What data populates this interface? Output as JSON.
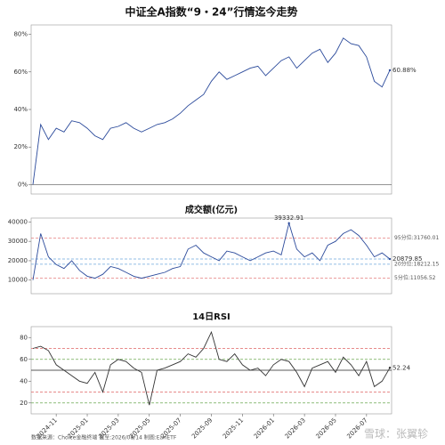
{
  "chart_data": [
    {
      "type": "line",
      "title": "中证全A指数“9・24”行情迄今走势",
      "color": "#2b4a9b",
      "values": [
        0,
        32,
        24,
        30,
        28,
        34,
        33,
        30,
        26,
        24,
        30,
        31,
        33,
        30,
        28,
        30,
        32,
        33,
        35,
        38,
        42,
        45,
        48,
        55,
        60,
        56,
        58,
        60,
        62,
        63,
        58,
        62,
        66,
        68,
        62,
        66,
        70,
        72,
        65,
        70,
        78,
        75,
        74,
        68,
        55,
        52,
        60.88
      ],
      "value_labels": [
        null,
        null,
        null,
        null,
        null,
        null,
        null,
        null,
        null,
        null,
        null,
        null,
        null,
        null,
        null,
        null,
        null,
        null,
        null,
        null,
        null,
        null,
        null,
        null,
        null,
        null,
        null,
        null,
        null,
        null,
        null,
        null,
        null,
        null,
        null,
        null,
        null,
        null,
        null,
        null,
        null,
        null,
        null,
        null,
        null,
        null,
        "60.88%"
      ],
      "ylim": [
        -5,
        85
      ],
      "yticks": [
        {
          "value": 0,
          "label": "0%"
        },
        {
          "value": 20,
          "label": "20%"
        },
        {
          "value": 40,
          "label": "40%"
        },
        {
          "value": 60,
          "label": "60%"
        },
        {
          "value": 80,
          "label": "80%"
        }
      ],
      "reference_lines": [
        {
          "value": 0,
          "color": "#555555"
        }
      ]
    },
    {
      "type": "line",
      "title": "成交额(亿元)",
      "color": "#2b4a9b",
      "values": [
        10000,
        34000,
        22000,
        18000,
        16000,
        20000,
        15000,
        12000,
        11000,
        13000,
        17000,
        16000,
        14000,
        12000,
        11000,
        12000,
        13000,
        14000,
        16000,
        17000,
        26000,
        28000,
        24000,
        22000,
        20000,
        25000,
        24000,
        22000,
        20000,
        22000,
        24000,
        25000,
        23000,
        39332.91,
        26000,
        22000,
        24000,
        20000,
        28000,
        30000,
        34000,
        36000,
        33000,
        28000,
        22000,
        24000,
        20879.85
      ],
      "value_labels": [
        null,
        null,
        null,
        null,
        null,
        null,
        null,
        null,
        null,
        null,
        null,
        null,
        null,
        null,
        null,
        null,
        null,
        null,
        null,
        null,
        null,
        null,
        null,
        null,
        null,
        null,
        null,
        null,
        null,
        null,
        null,
        null,
        null,
        "39332.91",
        null,
        null,
        null,
        null,
        null,
        null,
        null,
        null,
        null,
        null,
        null,
        null,
        "20879.85"
      ],
      "ylim": [
        3000,
        42000
      ],
      "yticks": [
        10000,
        20000,
        30000,
        40000
      ],
      "reference_lines": [
        {
          "value": 31760.01,
          "label": "95分位:31760.01",
          "color": "#e06666"
        },
        {
          "value": 20879.85,
          "color": "#6fa8dc"
        },
        {
          "value": 18212.15,
          "label": "20分位:18212.15",
          "color": "#6fa8dc"
        },
        {
          "value": 11056.52,
          "label": "5分位:11056.52",
          "color": "#e06666"
        }
      ]
    },
    {
      "type": "line",
      "title": "14日RSI",
      "color": "#333333",
      "categories": [
        null,
        null,
        null,
        "2024-11",
        null,
        null,
        null,
        "2025-01",
        null,
        null,
        null,
        "2025-03",
        null,
        null,
        null,
        "2025-05",
        null,
        null,
        null,
        "2025-07",
        null,
        null,
        null,
        "2025-09",
        null,
        null,
        null,
        "2025-11",
        null,
        null,
        null,
        "2026-01",
        null,
        null,
        null,
        "2026-03",
        null,
        null,
        null,
        "2026-05",
        null,
        null,
        null,
        "2026-07",
        null,
        null,
        null
      ],
      "values": [
        70,
        72,
        68,
        55,
        50,
        45,
        40,
        38,
        48,
        30,
        55,
        60,
        58,
        52,
        48,
        18,
        50,
        52,
        55,
        58,
        65,
        62,
        70,
        85,
        60,
        58,
        65,
        55,
        50,
        52,
        45,
        55,
        60,
        58,
        48,
        35,
        52,
        55,
        58,
        48,
        62,
        55,
        45,
        58,
        35,
        40,
        52.24
      ],
      "value_labels": [
        null,
        null,
        null,
        null,
        null,
        null,
        null,
        null,
        null,
        null,
        null,
        null,
        null,
        null,
        null,
        null,
        null,
        null,
        null,
        null,
        null,
        null,
        null,
        null,
        null,
        null,
        null,
        null,
        null,
        null,
        null,
        null,
        null,
        null,
        null,
        null,
        null,
        null,
        null,
        null,
        null,
        null,
        null,
        null,
        null,
        null,
        "52.24"
      ],
      "ylim": [
        10,
        90
      ],
      "yticks": [
        20,
        40,
        60,
        80
      ],
      "reference_lines": [
        {
          "value": 70,
          "color": "#e06666"
        },
        {
          "value": 60,
          "color": "#6aa84f"
        },
        {
          "value": 50,
          "color": "#222222"
        },
        {
          "value": 30,
          "color": "#e06666"
        },
        {
          "value": 20,
          "color": "#6aa84f"
        }
      ]
    }
  ],
  "footer": {
    "source": "数据来源：Choice金融终端 截至:2026/08/14 制图:EarlETF",
    "watermark": "雪球：张翼轸"
  }
}
